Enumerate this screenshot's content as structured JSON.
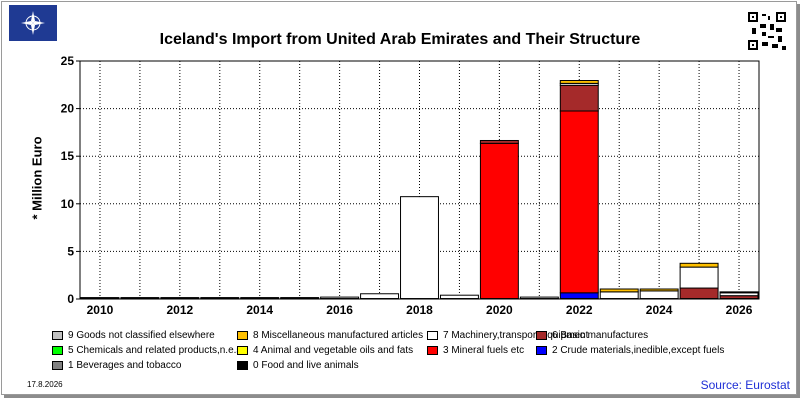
{
  "page": {
    "title": "Iceland's Import from United Arab Emirates and Their Structure",
    "date": "17.8.2026",
    "source": "Source: Eurostat",
    "logo_icon": "nato-compass-logo-icon",
    "qr_icon": "qr-code-icon"
  },
  "chart_data": {
    "type": "bar",
    "stacked": true,
    "title": "Iceland's Import from United Arab Emirates and Their Structure",
    "ylabel": "* Million Euro",
    "xlabel": "",
    "ylim": [
      0,
      25
    ],
    "yticks": [
      "0",
      "5",
      "10",
      "15",
      "20",
      "25"
    ],
    "xtick_labels": [
      "2010",
      "2012",
      "2014",
      "2016",
      "2018",
      "2020",
      "2022",
      "2024",
      "2026"
    ],
    "categories": [
      "2010",
      "2011",
      "2012",
      "2013",
      "2014",
      "2015",
      "2016",
      "2017",
      "2018",
      "2019",
      "2020",
      "2021",
      "2022",
      "2023",
      "2024",
      "2025",
      "2026"
    ],
    "grid": true,
    "legend_position": "bottom",
    "series": [
      {
        "name": "0 Food and live animals",
        "color": "#000000",
        "values": [
          0.05,
          0.05,
          0.05,
          0.05,
          0.05,
          0.05,
          0.05,
          0.05,
          0.05,
          0.05,
          0.05,
          0.05,
          0.05,
          0.05,
          0.05,
          0.05,
          0.05
        ]
      },
      {
        "name": "1 Beverages and tobacco",
        "color": "#808080",
        "values": [
          0,
          0,
          0,
          0,
          0,
          0,
          0,
          0,
          0,
          0,
          0,
          0,
          0,
          0,
          0,
          0,
          0
        ]
      },
      {
        "name": "2 Crude materials,inedible,except fuels",
        "color": "#0000ff",
        "values": [
          0,
          0,
          0,
          0,
          0,
          0,
          0,
          0,
          0,
          0,
          0,
          0,
          0.6,
          0,
          0,
          0,
          0
        ]
      },
      {
        "name": "3 Mineral fuels etc",
        "color": "#ff0000",
        "values": [
          0,
          0,
          0,
          0,
          0,
          0,
          0,
          0,
          0,
          0,
          16.3,
          0,
          19.1,
          0,
          0,
          0,
          0
        ]
      },
      {
        "name": "4 Animal and vegetable oils and fats",
        "color": "#ffff00",
        "values": [
          0,
          0,
          0,
          0,
          0,
          0,
          0,
          0,
          0,
          0,
          0,
          0,
          0,
          0,
          0,
          0,
          0
        ]
      },
      {
        "name": "5 Chemicals and related products,n.e.s.",
        "color": "#00ff00",
        "values": [
          0,
          0,
          0,
          0,
          0,
          0,
          0,
          0,
          0,
          0,
          0,
          0,
          0,
          0,
          0,
          0,
          0
        ]
      },
      {
        "name": "6 Basic manufactures",
        "color": "#a52a2a",
        "values": [
          0,
          0,
          0,
          0,
          0,
          0,
          0,
          0,
          0,
          0,
          0.3,
          0,
          2.7,
          0,
          0,
          1.1,
          0.3
        ]
      },
      {
        "name": "7 Machinery,transport equipment",
        "color": "#ffffff",
        "values": [
          0.1,
          0.1,
          0.1,
          0.1,
          0.1,
          0.1,
          0.15,
          0.5,
          10.7,
          0.35,
          0,
          0.15,
          0.2,
          0.7,
          0.8,
          2.2,
          0.3
        ]
      },
      {
        "name": "8 Miscellaneous manufactured articles",
        "color": "#ffc000",
        "values": [
          0,
          0,
          0,
          0,
          0,
          0,
          0,
          0,
          0,
          0,
          0,
          0,
          0.3,
          0.3,
          0.2,
          0.4,
          0.1
        ]
      },
      {
        "name": "9 Goods not classified elsewhere",
        "color": "#c0c0c0",
        "values": [
          0,
          0,
          0,
          0,
          0,
          0,
          0,
          0,
          0,
          0,
          0,
          0,
          0,
          0,
          0,
          0,
          0
        ]
      }
    ]
  },
  "legend_order": [
    [
      9,
      8,
      7,
      6
    ],
    [
      5,
      4,
      3,
      2
    ],
    [
      1,
      0
    ]
  ]
}
